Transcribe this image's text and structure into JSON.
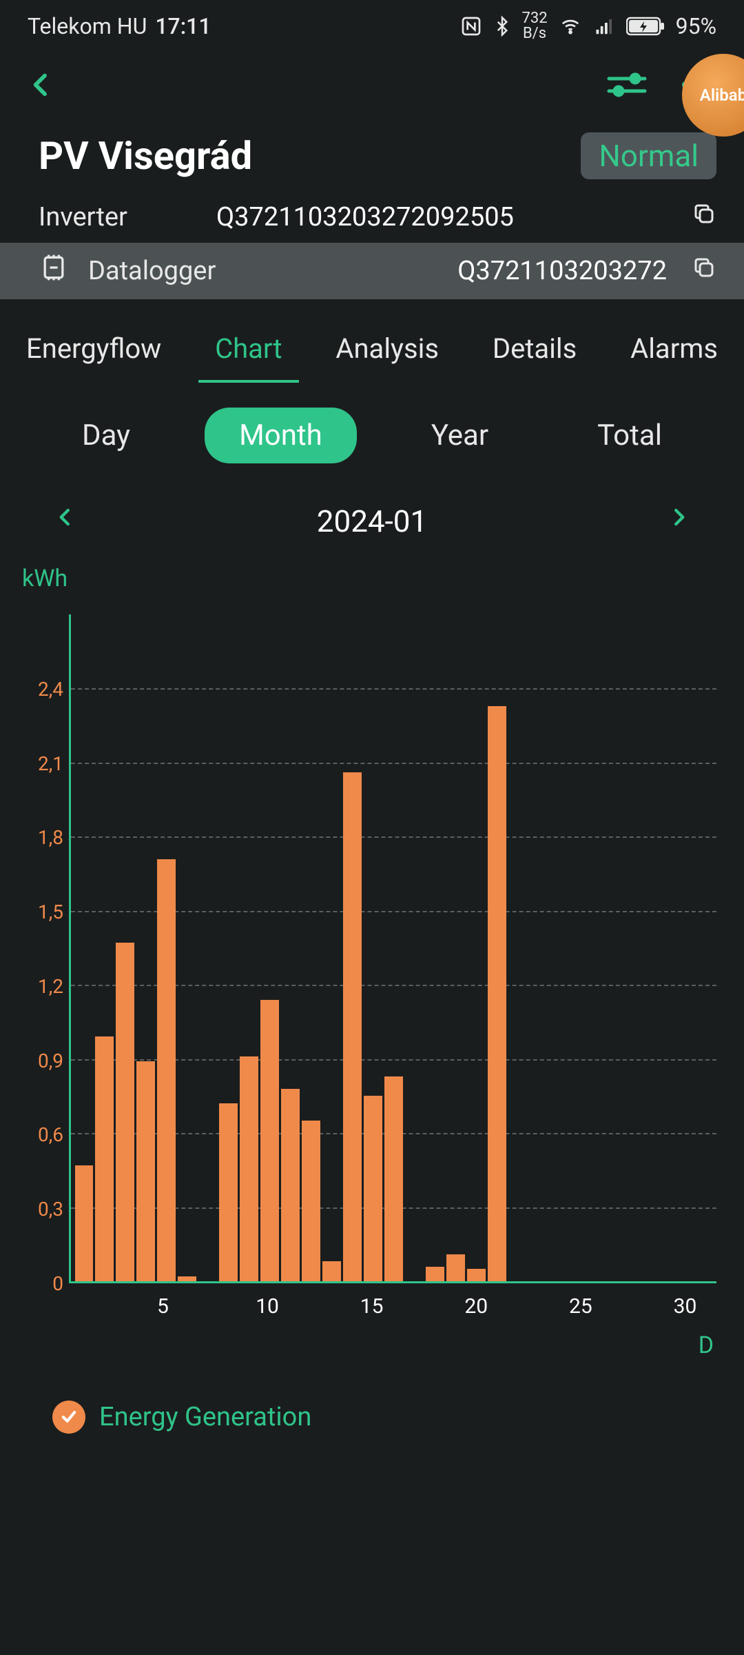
{
  "status_bar": {
    "carrier": "Telekom HU",
    "time": "17:11",
    "net_speed_top": "732",
    "net_speed_bottom": "B/s",
    "battery_pct": "95%"
  },
  "floating_badge": "Alibab",
  "title": "PV Visegrád",
  "status_label": "Normal",
  "inverter": {
    "label": "Inverter",
    "value": "Q3721103203272092505"
  },
  "datalogger": {
    "label": "Datalogger",
    "value": "Q3721103203272"
  },
  "tabs": {
    "items": [
      "Energyflow",
      "Chart",
      "Analysis",
      "Details",
      "Alarms"
    ],
    "active_index": 1
  },
  "period_tabs": {
    "items": [
      "Day",
      "Month",
      "Year",
      "Total"
    ],
    "active_index": 1
  },
  "date_label": "2024-01",
  "chart": {
    "type": "bar",
    "y_unit": "kWh",
    "x_unit": "D",
    "ymax": 2.7,
    "ytick_step": 0.3,
    "yticks_labels": [
      "2,4",
      "2,1",
      "1,8",
      "1,5",
      "1,2",
      "0,9",
      "0,6",
      "0,3",
      "0"
    ],
    "yticks_values": [
      2.4,
      2.1,
      1.8,
      1.5,
      1.2,
      0.9,
      0.6,
      0.3,
      0
    ],
    "xticks": [
      5,
      10,
      15,
      20,
      25,
      30
    ],
    "days": 31,
    "values": [
      0.47,
      0.99,
      1.37,
      0.89,
      1.71,
      0.02,
      0,
      0.72,
      0.91,
      1.14,
      0.78,
      0.65,
      0.08,
      2.06,
      0.75,
      0.83,
      0,
      0.06,
      0.11,
      0.05,
      2.33,
      0,
      0,
      0,
      0,
      0,
      0,
      0,
      0,
      0,
      0
    ],
    "bar_color": "#f08a4a",
    "axis_color": "#2fc48a",
    "grid_color": "#5a5f60",
    "background": "#1a1d1e",
    "ytick_fontsize": 28,
    "xtick_fontsize": 30
  },
  "legend": {
    "label": "Energy Generation",
    "checked": true
  },
  "colors": {
    "accent": "#2fc48a",
    "bar": "#f08a4a",
    "bg": "#1a1d1e"
  }
}
